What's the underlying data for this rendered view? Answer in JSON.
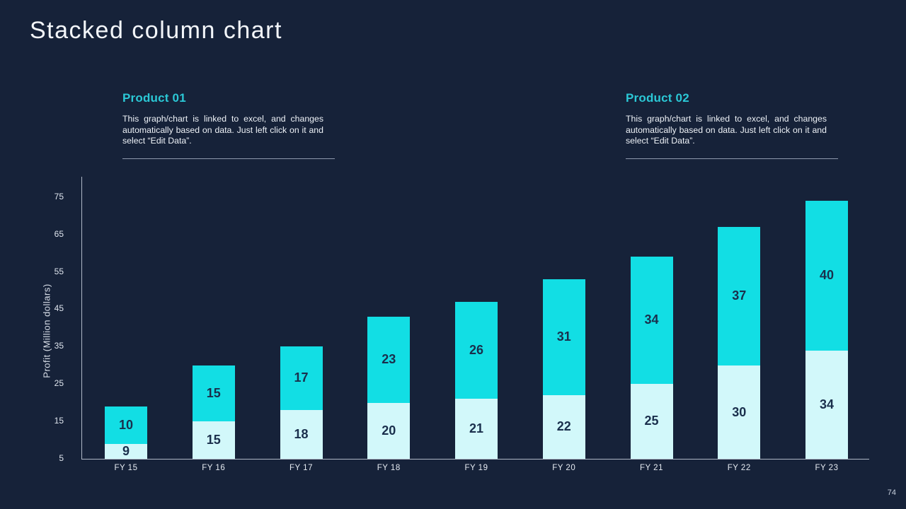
{
  "page": {
    "title": "Stacked column chart",
    "page_number": "74"
  },
  "info_blocks": [
    {
      "heading": "Product 01",
      "body": "This graph/chart is linked to excel, and changes automatically based on data. Just left click on it and select “Edit Data”."
    },
    {
      "heading": "Product 02",
      "body": "This graph/chart is linked to excel, and changes automatically based on data. Just left click on it and select “Edit Data”."
    }
  ],
  "chart_data": {
    "type": "bar",
    "stacked": true,
    "title": "",
    "xlabel": "",
    "ylabel": "Profit  (Million dollars)",
    "categories": [
      "FY 15",
      "FY 16",
      "FY 17",
      "FY 18",
      "FY 19",
      "FY 20",
      "FY 21",
      "FY 22",
      "FY 23"
    ],
    "series": [
      {
        "name": "Product 01",
        "color": "#d2f8fa",
        "values": [
          9,
          15,
          18,
          20,
          21,
          22,
          25,
          30,
          34
        ]
      },
      {
        "name": "Product 02",
        "color": "#12dee4",
        "values": [
          10,
          15,
          17,
          23,
          26,
          31,
          34,
          37,
          40
        ]
      }
    ],
    "yticks": [
      5,
      15,
      25,
      35,
      45,
      55,
      65,
      75
    ],
    "ylim": [
      5,
      80
    ],
    "axis_min_is_baseline": true,
    "grid": false,
    "legend": "none",
    "value_labels": "inside-center",
    "value_label_color": "#1a2f4c",
    "axis_color": "#b0b8c6",
    "background_color": "#162239"
  }
}
